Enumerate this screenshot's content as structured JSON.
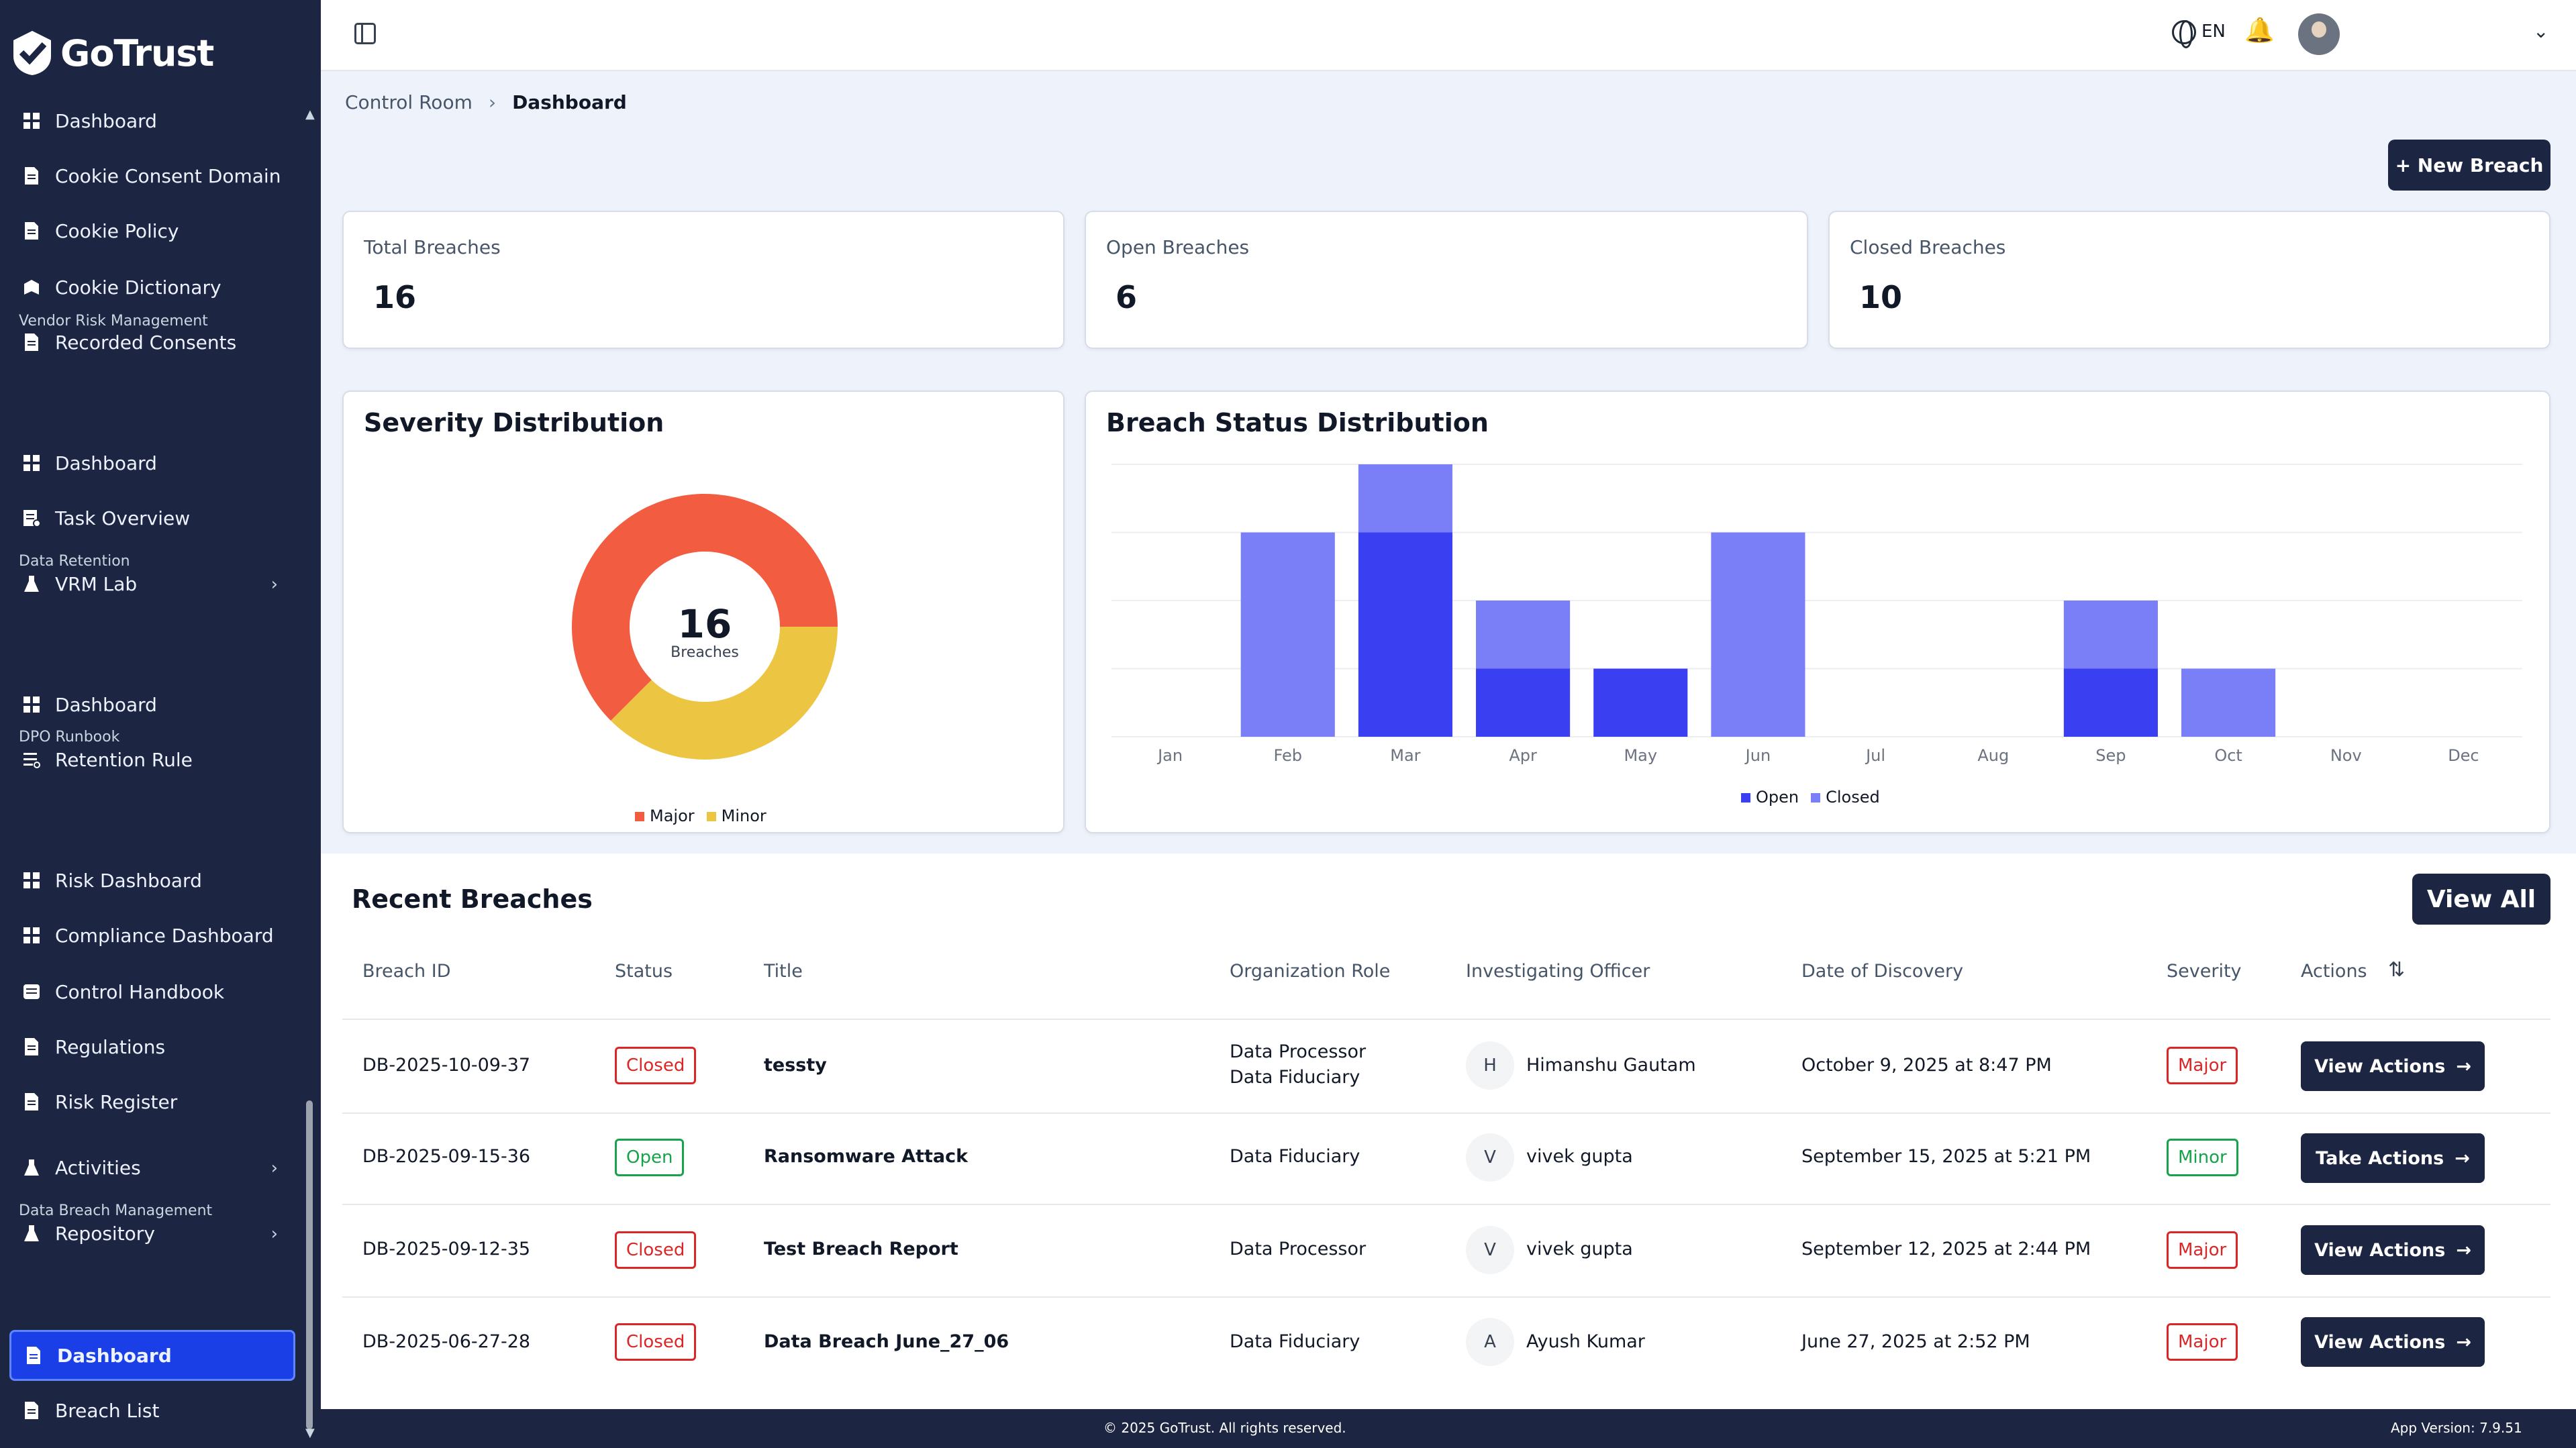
{
  "app": {
    "name": "GoTrust"
  },
  "sidebar": {
    "top_items": [
      {
        "label": "Dashboard",
        "icon": "grid-icon"
      },
      {
        "label": "Cookie Consent Domain",
        "icon": "document-icon"
      },
      {
        "label": "Cookie Policy",
        "icon": "document-icon"
      },
      {
        "label": "Cookie Dictionary",
        "icon": "book-icon"
      },
      {
        "label": "Recorded Consents",
        "icon": "document-icon"
      }
    ],
    "sections": [
      {
        "title": "Vendor Risk Management",
        "items": [
          {
            "label": "Dashboard",
            "icon": "grid-icon"
          },
          {
            "label": "Task Overview",
            "icon": "tasks-icon"
          },
          {
            "label": "VRM Lab",
            "icon": "flask-icon",
            "expandable": true
          }
        ]
      },
      {
        "title": "Data Retention",
        "items": [
          {
            "label": "Dashboard",
            "icon": "grid-icon"
          },
          {
            "label": "Retention Rule",
            "icon": "list-icon"
          }
        ]
      },
      {
        "title": "DPO Runbook",
        "items": [
          {
            "label": "Risk Dashboard",
            "icon": "grid-icon"
          },
          {
            "label": "Compliance Dashboard",
            "icon": "grid-icon"
          },
          {
            "label": "Control Handbook",
            "icon": "handbook-icon"
          },
          {
            "label": "Regulations",
            "icon": "document-icon"
          },
          {
            "label": "Risk Register",
            "icon": "document-icon"
          },
          {
            "label": "Activities",
            "icon": "flask-icon",
            "expandable": true
          },
          {
            "label": "Repository",
            "icon": "flask-icon",
            "expandable": true
          }
        ]
      },
      {
        "title": "Data Breach Management",
        "items": [
          {
            "label": "Dashboard",
            "icon": "grid-icon",
            "active": true
          },
          {
            "label": "Breach List",
            "icon": "document-icon"
          }
        ]
      }
    ]
  },
  "topbar": {
    "language": "EN"
  },
  "breadcrumb": {
    "parent": "Control Room",
    "current": "Dashboard"
  },
  "new_breach_label": "+ New Breach",
  "stats": [
    {
      "label": "Total Breaches",
      "value": "16"
    },
    {
      "label": "Open Breaches",
      "value": "6"
    },
    {
      "label": "Closed Breaches",
      "value": "10"
    }
  ],
  "severity_card": {
    "title": "Severity Distribution",
    "center_value": "16",
    "center_label": "Breaches"
  },
  "status_card": {
    "title": "Breach Status Distribution"
  },
  "chart_data": [
    {
      "type": "pie",
      "title": "Severity Distribution",
      "categories": [
        "Major",
        "Minor"
      ],
      "values": [
        10,
        6
      ],
      "colors": [
        "#f25c40",
        "#ecc543"
      ],
      "legend": "bottom"
    },
    {
      "type": "bar",
      "stacked": true,
      "title": "Breach Status Distribution",
      "categories": [
        "Jan",
        "Feb",
        "Mar",
        "Apr",
        "May",
        "Jun",
        "Jul",
        "Aug",
        "Sep",
        "Oct",
        "Nov",
        "Dec"
      ],
      "series": [
        {
          "name": "Open",
          "color": "#3b3ff2",
          "values": [
            0,
            0,
            3,
            1,
            1,
            0,
            0,
            0,
            1,
            0,
            0,
            0
          ]
        },
        {
          "name": "Closed",
          "color": "#7b7ff7",
          "values": [
            0,
            3,
            1,
            1,
            0,
            3,
            0,
            0,
            1,
            1,
            0,
            0
          ]
        }
      ],
      "ylim": [
        0,
        4
      ],
      "grid": true,
      "legend": "bottom"
    }
  ],
  "recent": {
    "title": "Recent Breaches",
    "view_all": "View All",
    "columns": [
      "Breach ID",
      "Status",
      "Title",
      "Organization Role",
      "Investigating Officer",
      "Date of Discovery",
      "Severity",
      "Actions"
    ],
    "rows": [
      {
        "id": "DB-2025-10-09-37",
        "status": "Closed",
        "title": "tessty",
        "role": "Data Processor",
        "role2": "Data Fiduciary",
        "initial": "H",
        "officer": "Himanshu Gautam",
        "date": "October 9, 2025 at 8:47 PM",
        "severity": "Major",
        "action": "View Actions"
      },
      {
        "id": "DB-2025-09-15-36",
        "status": "Open",
        "title": "Ransomware Attack",
        "role": "Data Fiduciary",
        "role2": "",
        "initial": "V",
        "officer": "vivek gupta",
        "date": "September 15, 2025 at 5:21 PM",
        "severity": "Minor",
        "action": "Take Actions"
      },
      {
        "id": "DB-2025-09-12-35",
        "status": "Closed",
        "title": "Test Breach Report",
        "role": "Data Processor",
        "role2": "",
        "initial": "V",
        "officer": "vivek gupta",
        "date": "September 12, 2025 at 2:44 PM",
        "severity": "Major",
        "action": "View Actions"
      },
      {
        "id": "DB-2025-06-27-28",
        "status": "Closed",
        "title": "Data Breach June_27_06",
        "role": "Data Fiduciary",
        "role2": "",
        "initial": "A",
        "officer": "Ayush Kumar",
        "date": "June 27, 2025 at 2:52 PM",
        "severity": "Major",
        "action": "View Actions"
      }
    ]
  },
  "footer": {
    "copyright": "© 2025 GoTrust. All rights reserved.",
    "version": "App Version: 7.9.51"
  }
}
